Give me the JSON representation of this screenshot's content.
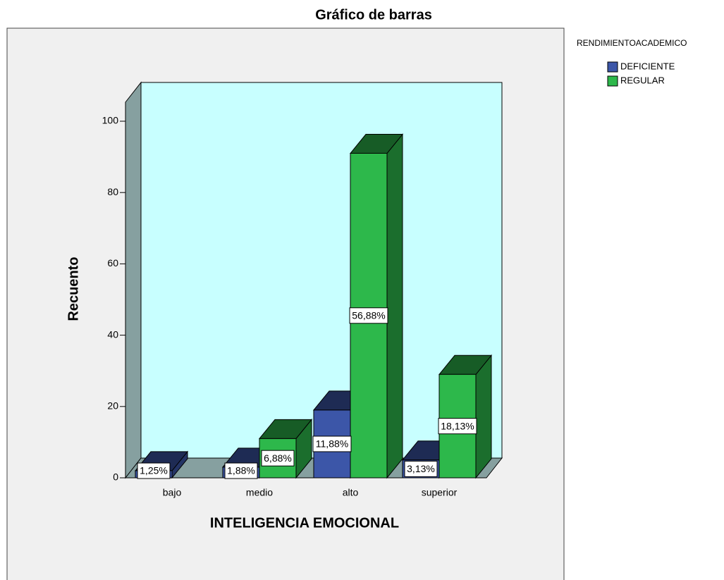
{
  "chart_data": {
    "type": "bar3d",
    "title": "Gráfico de barras",
    "x_label": "INTELIGENCIA EMOCIONAL",
    "y_label": "Recuento",
    "legend_title": "RENDIMIENTOACADEMICO",
    "categories": [
      "bajo",
      "medio",
      "alto",
      "superior"
    ],
    "series": [
      {
        "name": "DEFICIENTE",
        "color": "#3c56a8",
        "values": [
          2,
          3,
          19,
          5
        ],
        "percent_labels": [
          "1,25%",
          "1,88%",
          "11,88%",
          "3,13%"
        ]
      },
      {
        "name": "REGULAR",
        "color": "#2db84b",
        "values": [
          null,
          11,
          91,
          29
        ],
        "percent_labels": [
          null,
          "6,88%",
          "56,88%",
          "18,13%"
        ]
      }
    ],
    "ylim": [
      0,
      100
    ],
    "yticks": [
      0,
      20,
      40,
      60,
      80,
      100
    ],
    "legend": "right"
  }
}
